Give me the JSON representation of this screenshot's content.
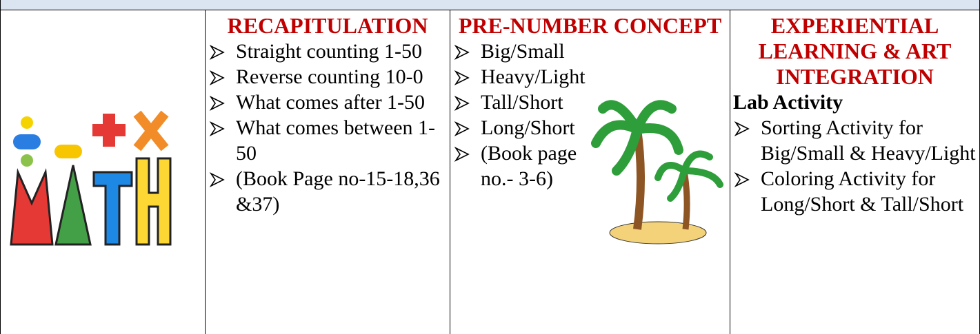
{
  "table": {
    "columns": [
      {
        "heading": "RECAPITULATION",
        "items": [
          "Straight counting 1-50",
          "Reverse counting 10-0",
          "What comes after 1-50",
          "What comes between 1-50",
          "(Book Page no-15-18,36 &37)"
        ]
      },
      {
        "heading": "PRE-NUMBER CONCEPT",
        "items": [
          "Big/Small",
          "Heavy/Light",
          "Tall/Short",
          "Long/Short",
          "(Book page no.- 3-6)"
        ]
      },
      {
        "heading": "EXPERIENTIAL LEARNING & ART INTEGRATION",
        "subheading": "Lab Activity",
        "items": [
          "Sorting Activity for Big/Small & Heavy/Light",
          "Coloring Activity for Long/Short & Tall/Short"
        ]
      }
    ]
  }
}
